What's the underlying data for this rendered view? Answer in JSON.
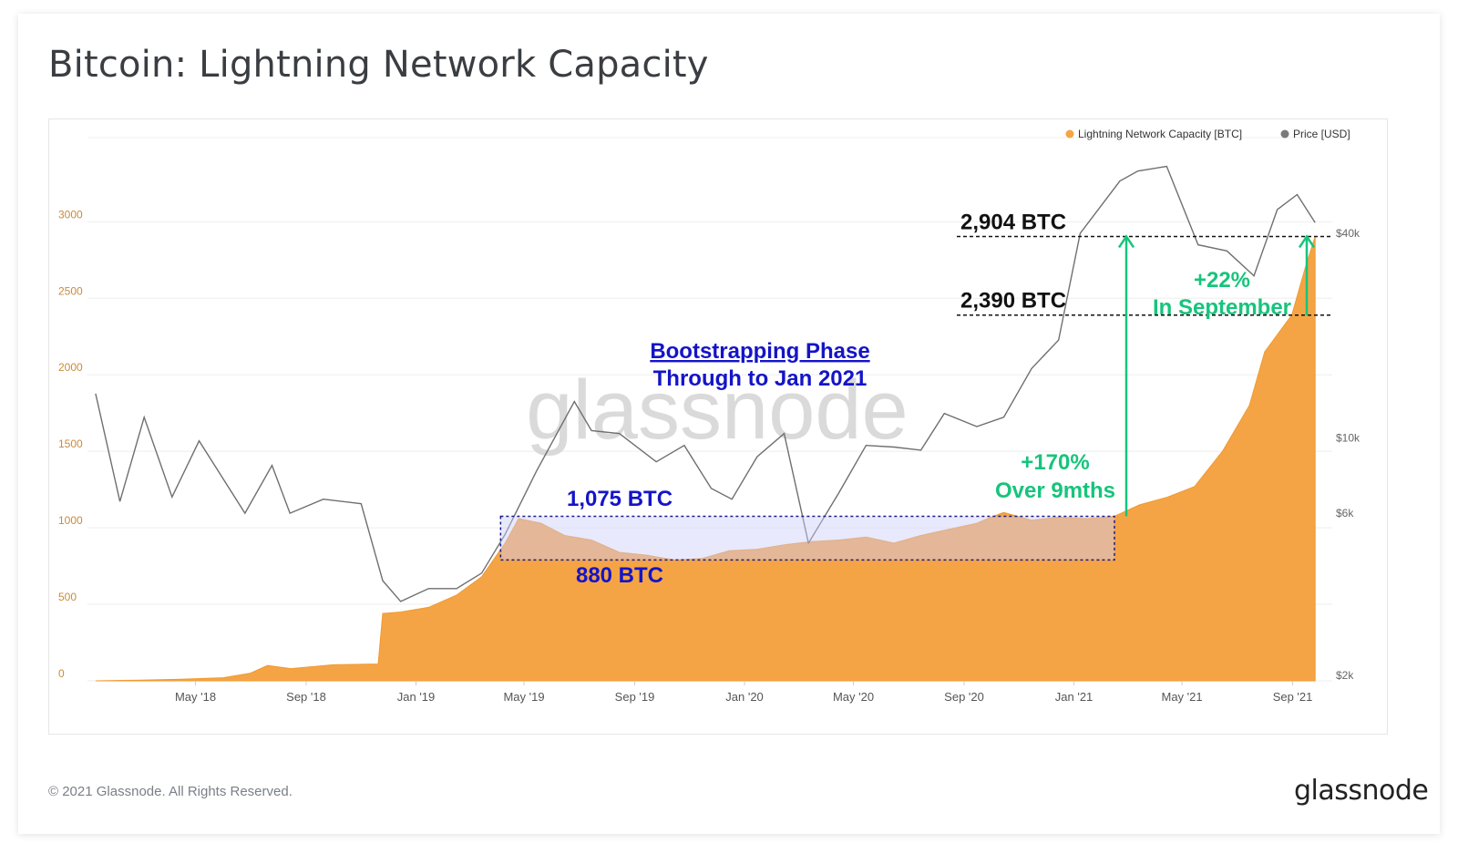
{
  "title": "Bitcoin: Lightning Network Capacity",
  "footer": "© 2021 Glassnode. All Rights Reserved.",
  "brand": "glassnode",
  "watermark": "glassnode",
  "colors": {
    "capacity": "#f5a445",
    "price": "#6f6f6f",
    "annotation_blue": "#1414c8",
    "annotation_green": "#17c47c",
    "box_fill": "#cfcffa"
  },
  "legend": [
    {
      "label": "Lightning Network Capacity [BTC]",
      "color": "#f5a445"
    },
    {
      "label": "Price [USD]",
      "color": "#7a7a7a"
    }
  ],
  "annotations": {
    "bootstrap_line1": "Bootstrapping Phase",
    "bootstrap_line2": "Through to Jan 2021",
    "high_box": "1,075 BTC",
    "low_box": "880 BTC",
    "level_2904": "2,904 BTC",
    "level_2390": "2,390 BTC",
    "growth_9m_1": "+170%",
    "growth_9m_2": "Over 9mths",
    "growth_sep_1": "+22%",
    "growth_sep_2": "In September"
  },
  "chart_data": {
    "type": "area",
    "title": "Bitcoin: Lightning Network Capacity",
    "x_ticks": [
      "May '18",
      "Sep '18",
      "Jan '19",
      "May '19",
      "Sep '19",
      "Jan '20",
      "May '20",
      "Sep '20",
      "Jan '21",
      "May '21",
      "Sep '21"
    ],
    "y_left": {
      "ticks": [
        0,
        500,
        1000,
        1500,
        2000,
        2500,
        3000
      ],
      "range": [
        0,
        3550
      ]
    },
    "y_right": {
      "ticks": [
        "$2k",
        "$6k",
        "$10k",
        "$40k"
      ],
      "scale": "log"
    },
    "grid": true,
    "legend_position": "top-right",
    "series": [
      {
        "name": "Lightning Network Capacity [BTC]",
        "axis": "left",
        "points": [
          [
            "2018-01-10",
            0
          ],
          [
            "2018-03-01",
            5
          ],
          [
            "2018-04-15",
            10
          ],
          [
            "2018-06-01",
            20
          ],
          [
            "2018-07-01",
            50
          ],
          [
            "2018-07-20",
            100
          ],
          [
            "2018-08-15",
            80
          ],
          [
            "2018-10-01",
            105
          ],
          [
            "2018-11-20",
            110
          ],
          [
            "2018-11-25",
            440
          ],
          [
            "2018-12-15",
            450
          ],
          [
            "2019-01-15",
            480
          ],
          [
            "2019-02-15",
            560
          ],
          [
            "2019-03-15",
            680
          ],
          [
            "2019-04-10",
            900
          ],
          [
            "2019-04-25",
            1060
          ],
          [
            "2019-05-20",
            1030
          ],
          [
            "2019-06-15",
            950
          ],
          [
            "2019-07-15",
            920
          ],
          [
            "2019-08-15",
            840
          ],
          [
            "2019-09-15",
            820
          ],
          [
            "2019-10-15",
            790
          ],
          [
            "2019-11-15",
            800
          ],
          [
            "2019-12-15",
            850
          ],
          [
            "2020-01-15",
            860
          ],
          [
            "2020-02-15",
            890
          ],
          [
            "2020-03-15",
            910
          ],
          [
            "2020-04-15",
            920
          ],
          [
            "2020-05-15",
            940
          ],
          [
            "2020-06-15",
            900
          ],
          [
            "2020-07-15",
            950
          ],
          [
            "2020-08-15",
            990
          ],
          [
            "2020-09-15",
            1030
          ],
          [
            "2020-10-01",
            1070
          ],
          [
            "2020-10-15",
            1100
          ],
          [
            "2020-11-15",
            1050
          ],
          [
            "2020-12-15",
            1070
          ],
          [
            "2021-01-15",
            1060
          ],
          [
            "2021-02-15",
            1075
          ],
          [
            "2021-03-15",
            1150
          ],
          [
            "2021-04-15",
            1200
          ],
          [
            "2021-05-15",
            1270
          ],
          [
            "2021-06-15",
            1500
          ],
          [
            "2021-07-15",
            1800
          ],
          [
            "2021-08-01",
            2150
          ],
          [
            "2021-08-31",
            2390
          ],
          [
            "2021-09-15",
            2700
          ],
          [
            "2021-09-26",
            2904
          ]
        ]
      },
      {
        "name": "Price [USD]",
        "axis": "right",
        "points": [
          [
            "2018-01-10",
            13500
          ],
          [
            "2018-02-06",
            6500
          ],
          [
            "2018-03-05",
            11500
          ],
          [
            "2018-04-05",
            6700
          ],
          [
            "2018-05-05",
            9800
          ],
          [
            "2018-06-25",
            6000
          ],
          [
            "2018-07-25",
            8300
          ],
          [
            "2018-08-14",
            6000
          ],
          [
            "2018-09-20",
            6600
          ],
          [
            "2018-11-01",
            6400
          ],
          [
            "2018-11-25",
            3800
          ],
          [
            "2018-12-15",
            3300
          ],
          [
            "2019-01-15",
            3600
          ],
          [
            "2019-02-15",
            3600
          ],
          [
            "2019-03-15",
            4000
          ],
          [
            "2019-04-10",
            5200
          ],
          [
            "2019-05-15",
            8000
          ],
          [
            "2019-06-26",
            12800
          ],
          [
            "2019-07-15",
            10500
          ],
          [
            "2019-08-15",
            10300
          ],
          [
            "2019-09-25",
            8500
          ],
          [
            "2019-10-26",
            9500
          ],
          [
            "2019-11-25",
            7100
          ],
          [
            "2019-12-18",
            6600
          ],
          [
            "2020-01-15",
            8800
          ],
          [
            "2020-02-14",
            10300
          ],
          [
            "2020-03-12",
            4900
          ],
          [
            "2020-04-15",
            6900
          ],
          [
            "2020-05-15",
            9500
          ],
          [
            "2020-06-15",
            9400
          ],
          [
            "2020-07-15",
            9200
          ],
          [
            "2020-08-10",
            11800
          ],
          [
            "2020-09-15",
            10800
          ],
          [
            "2020-10-15",
            11500
          ],
          [
            "2020-11-15",
            16000
          ],
          [
            "2020-12-15",
            19400
          ],
          [
            "2021-01-08",
            40000
          ],
          [
            "2021-02-21",
            57000
          ],
          [
            "2021-03-13",
            61000
          ],
          [
            "2021-04-14",
            63000
          ],
          [
            "2021-05-19",
            37000
          ],
          [
            "2021-06-20",
            35500
          ],
          [
            "2021-07-20",
            30000
          ],
          [
            "2021-08-15",
            47000
          ],
          [
            "2021-09-06",
            52000
          ],
          [
            "2021-09-26",
            43000
          ]
        ]
      }
    ]
  }
}
